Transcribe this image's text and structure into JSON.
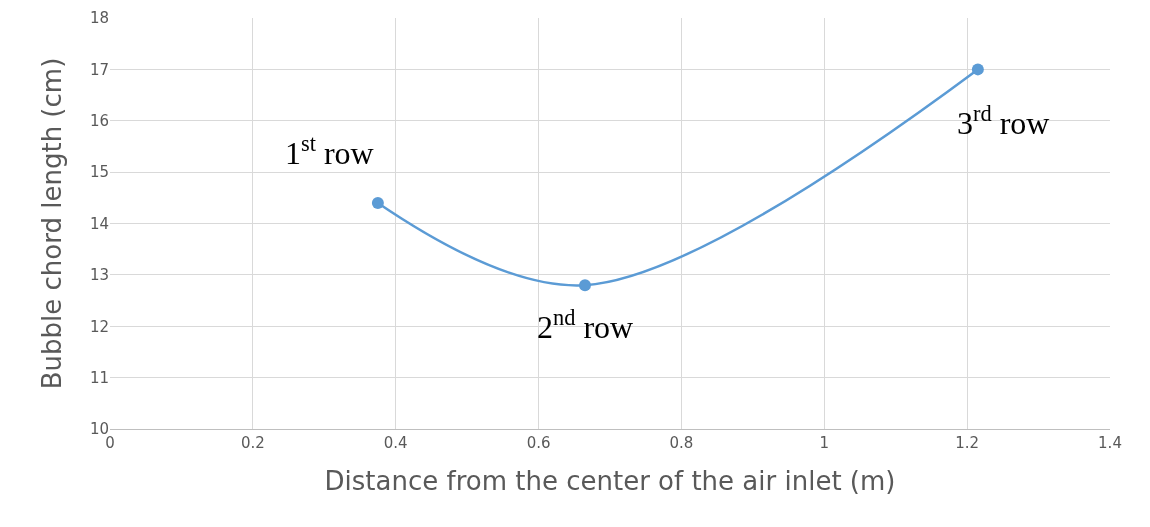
{
  "chart_data": {
    "type": "line",
    "xlabel": "Distance from the center of the air inlet (m)",
    "ylabel": "Bubble chord length (cm)",
    "x": [
      0.375,
      0.665,
      1.215
    ],
    "series": [
      {
        "color": "#5b9bd5",
        "values": [
          14.4,
          12.8,
          17.0
        ]
      }
    ],
    "xlim": [
      0,
      1.4
    ],
    "xticks": [
      0,
      0.2,
      0.4,
      0.6,
      0.8,
      1,
      1.2,
      1.4
    ],
    "ylim": [
      10,
      18
    ],
    "yticks": [
      10,
      11,
      12,
      13,
      14,
      15,
      16,
      17,
      18
    ],
    "grid": true,
    "marker": "circle",
    "line_style": "solid",
    "annotations": [
      {
        "text": "1$^{st}$ row",
        "x": 0.375,
        "y": 14.4
      },
      {
        "text": "2$^{nd}$ row",
        "x": 0.665,
        "y": 12.8
      },
      {
        "text": "3$^{rd}$ row",
        "x": 1.215,
        "y": 17.0
      }
    ]
  }
}
